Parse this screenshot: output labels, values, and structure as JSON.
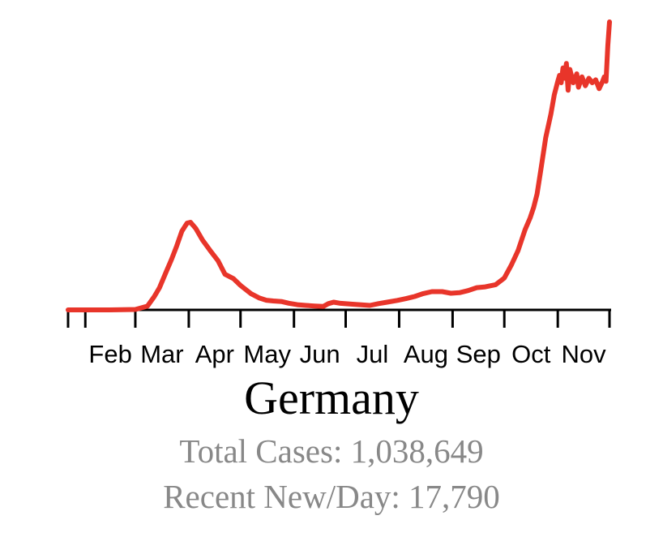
{
  "chart_data": {
    "type": "line",
    "title": "Germany",
    "x_axis": {
      "start": "2020-01-22",
      "end": "2020-12-01",
      "month_ticks": [
        {
          "date": "2020-01-22",
          "label": ""
        },
        {
          "date": "2020-02-01",
          "label": "Feb"
        },
        {
          "date": "2020-03-01",
          "label": "Mar"
        },
        {
          "date": "2020-04-01",
          "label": "Apr"
        },
        {
          "date": "2020-05-01",
          "label": "May"
        },
        {
          "date": "2020-06-01",
          "label": "Jun"
        },
        {
          "date": "2020-07-01",
          "label": "Jul"
        },
        {
          "date": "2020-08-01",
          "label": "Aug"
        },
        {
          "date": "2020-09-01",
          "label": "Sep"
        },
        {
          "date": "2020-10-01",
          "label": "Oct"
        },
        {
          "date": "2020-11-01",
          "label": "Nov"
        },
        {
          "date": "2020-12-01",
          "label": ""
        }
      ]
    },
    "y_axis": {
      "visible": false,
      "ylim": [
        0,
        19400
      ]
    },
    "grid": false,
    "series": [
      {
        "color": "#e8352a",
        "points": [
          [
            "2020-01-22",
            0
          ],
          [
            "2020-02-15",
            0
          ],
          [
            "2020-03-01",
            30
          ],
          [
            "2020-03-08",
            250
          ],
          [
            "2020-03-12",
            900
          ],
          [
            "2020-03-15",
            1500
          ],
          [
            "2020-03-19",
            2600
          ],
          [
            "2020-03-22",
            3400
          ],
          [
            "2020-03-25",
            4300
          ],
          [
            "2020-03-28",
            5300
          ],
          [
            "2020-03-31",
            5850
          ],
          [
            "2020-04-02",
            5900
          ],
          [
            "2020-04-05",
            5500
          ],
          [
            "2020-04-09",
            4700
          ],
          [
            "2020-04-14",
            3900
          ],
          [
            "2020-04-18",
            3300
          ],
          [
            "2020-04-22",
            2400
          ],
          [
            "2020-04-27",
            2100
          ],
          [
            "2020-05-01",
            1650
          ],
          [
            "2020-05-07",
            1100
          ],
          [
            "2020-05-12",
            800
          ],
          [
            "2020-05-16",
            650
          ],
          [
            "2020-05-20",
            600
          ],
          [
            "2020-05-25",
            560
          ],
          [
            "2020-05-29",
            450
          ],
          [
            "2020-06-03",
            350
          ],
          [
            "2020-06-08",
            300
          ],
          [
            "2020-06-13",
            260
          ],
          [
            "2020-06-18",
            230
          ],
          [
            "2020-06-21",
            420
          ],
          [
            "2020-06-24",
            520
          ],
          [
            "2020-06-28",
            440
          ],
          [
            "2020-07-05",
            380
          ],
          [
            "2020-07-10",
            340
          ],
          [
            "2020-07-15",
            300
          ],
          [
            "2020-07-20",
            420
          ],
          [
            "2020-07-25",
            520
          ],
          [
            "2020-07-31",
            640
          ],
          [
            "2020-08-05",
            760
          ],
          [
            "2020-08-10",
            900
          ],
          [
            "2020-08-15",
            1100
          ],
          [
            "2020-08-20",
            1230
          ],
          [
            "2020-08-26",
            1230
          ],
          [
            "2020-08-31",
            1120
          ],
          [
            "2020-09-05",
            1160
          ],
          [
            "2020-09-10",
            1300
          ],
          [
            "2020-09-15",
            1500
          ],
          [
            "2020-09-20",
            1550
          ],
          [
            "2020-09-26",
            1700
          ],
          [
            "2020-10-01",
            2150
          ],
          [
            "2020-10-05",
            3000
          ],
          [
            "2020-10-09",
            4000
          ],
          [
            "2020-10-13",
            5400
          ],
          [
            "2020-10-16",
            6200
          ],
          [
            "2020-10-18",
            6900
          ],
          [
            "2020-10-20",
            7800
          ],
          [
            "2020-10-22",
            9300
          ],
          [
            "2020-10-25",
            11600
          ],
          [
            "2020-10-28",
            13200
          ],
          [
            "2020-10-30",
            14500
          ],
          [
            "2020-11-01",
            15400
          ],
          [
            "2020-11-02",
            15800
          ],
          [
            "2020-11-03",
            15300
          ],
          [
            "2020-11-04",
            16300
          ],
          [
            "2020-11-05",
            15600
          ],
          [
            "2020-11-06",
            16600
          ],
          [
            "2020-11-07",
            14800
          ],
          [
            "2020-11-08",
            16200
          ],
          [
            "2020-11-10",
            15300
          ],
          [
            "2020-11-12",
            15900
          ],
          [
            "2020-11-13",
            15000
          ],
          [
            "2020-11-15",
            15700
          ],
          [
            "2020-11-17",
            15100
          ],
          [
            "2020-11-19",
            15600
          ],
          [
            "2020-11-21",
            15300
          ],
          [
            "2020-11-23",
            15500
          ],
          [
            "2020-11-25",
            14900
          ],
          [
            "2020-11-27",
            15400
          ],
          [
            "2020-11-28",
            15700
          ],
          [
            "2020-11-29",
            15400
          ],
          [
            "2020-11-30",
            17790
          ],
          [
            "2020-12-01",
            19400
          ]
        ]
      }
    ]
  },
  "stats": {
    "total_cases": "Total Cases: 1,038,649",
    "recent_new_per_day": "Recent New/Day: 17,790"
  }
}
